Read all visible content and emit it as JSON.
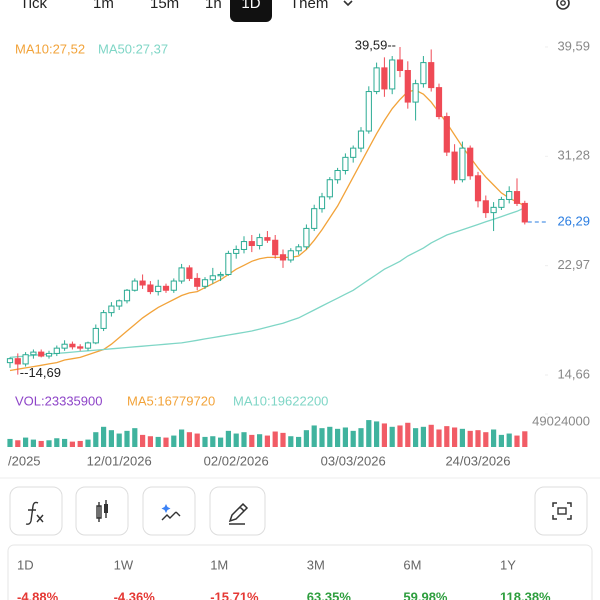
{
  "toolbar": {
    "tabs": [
      "Tick",
      "1m",
      "15m",
      "1h",
      "1D",
      "Thêm"
    ],
    "selected": "1D"
  },
  "chart_data": {
    "type": "candlestick",
    "categories": [
      null,
      null,
      "/2025",
      null,
      null,
      null,
      null,
      null,
      null,
      null,
      null,
      null,
      null,
      null,
      "12/01/2026",
      null,
      null,
      null,
      null,
      null,
      null,
      null,
      null,
      null,
      null,
      null,
      null,
      null,
      null,
      "02/02/2026",
      null,
      null,
      null,
      null,
      null,
      null,
      null,
      null,
      null,
      null,
      null,
      null,
      null,
      null,
      "03/03/2026",
      null,
      null,
      null,
      null,
      null,
      null,
      null,
      null,
      null,
      null,
      null,
      null,
      null,
      null,
      null,
      "24/03/2026",
      null,
      null,
      null,
      null,
      null,
      null
    ],
    "open": [
      15.6,
      15.9,
      15.5,
      16.2,
      16.4,
      16.1,
      16.3,
      16.7,
      17.0,
      16.8,
      16.7,
      17.1,
      18.2,
      19.4,
      19.9,
      20.3,
      21.1,
      21.8,
      21.5,
      21.0,
      21.4,
      21.1,
      21.8,
      22.8,
      22.0,
      21.4,
      21.9,
      22.2,
      22.3,
      23.9,
      24.2,
      24.8,
      24.5,
      25.1,
      24.9,
      23.8,
      23.4,
      24.1,
      24.4,
      25.8,
      27.3,
      28.2,
      29.5,
      30.2,
      31.2,
      31.9,
      33.2,
      36.2,
      38.0,
      36.4,
      38.6,
      37.8,
      35.4,
      36.8,
      38.4,
      36.5,
      34.3,
      31.6,
      29.5,
      31.9,
      29.8,
      27.9,
      27.0,
      27.4,
      28.0,
      28.6,
      27.7
    ],
    "high": [
      16.0,
      16.3,
      16.4,
      16.6,
      16.6,
      16.5,
      16.9,
      17.3,
      17.2,
      17.0,
      17.2,
      18.5,
      19.6,
      20.2,
      20.4,
      21.2,
      22.0,
      22.3,
      21.8,
      21.9,
      21.6,
      22.0,
      23.1,
      23.0,
      22.4,
      22.1,
      22.8,
      22.5,
      24.1,
      24.5,
      25.2,
      25.3,
      25.4,
      25.6,
      25.3,
      24.2,
      24.3,
      24.6,
      26.1,
      27.6,
      28.5,
      29.7,
      30.4,
      31.5,
      32.1,
      33.5,
      36.6,
      38.4,
      38.8,
      38.9,
      39.59,
      38.5,
      37.1,
      38.9,
      39.4,
      36.8,
      34.6,
      32.2,
      32.4,
      32.1,
      30.1,
      28.3,
      27.8,
      28.2,
      29.0,
      29.6,
      27.9
    ],
    "low": [
      15.2,
      14.69,
      15.3,
      15.9,
      16.0,
      15.9,
      16.1,
      16.5,
      16.6,
      16.5,
      16.5,
      17.0,
      18.0,
      19.1,
      19.6,
      20.1,
      21.0,
      21.2,
      20.8,
      20.7,
      20.9,
      20.9,
      21.6,
      21.8,
      21.1,
      21.2,
      21.6,
      21.8,
      22.2,
      23.5,
      23.9,
      24.0,
      24.2,
      24.7,
      23.5,
      22.8,
      23.2,
      23.8,
      24.2,
      25.6,
      27.0,
      28.0,
      29.2,
      29.9,
      30.8,
      31.6,
      33.0,
      36.0,
      35.8,
      36.0,
      37.3,
      34.9,
      34.0,
      36.5,
      36.2,
      34.1,
      31.3,
      29.2,
      29.3,
      29.5,
      27.4,
      26.6,
      25.6,
      27.2,
      27.7,
      27.5,
      26.1
    ],
    "close": [
      15.9,
      15.5,
      16.2,
      16.4,
      16.1,
      16.3,
      16.7,
      17.0,
      16.8,
      16.7,
      17.1,
      18.2,
      19.4,
      19.9,
      20.3,
      21.1,
      21.8,
      21.5,
      21.0,
      21.4,
      21.1,
      21.8,
      22.8,
      22.0,
      21.4,
      21.9,
      22.2,
      22.3,
      23.9,
      24.2,
      24.8,
      24.5,
      25.1,
      24.9,
      23.8,
      23.4,
      24.1,
      24.4,
      25.8,
      27.3,
      28.2,
      29.5,
      30.2,
      31.2,
      31.9,
      33.2,
      36.2,
      38.0,
      36.4,
      38.6,
      37.8,
      35.4,
      36.8,
      38.4,
      36.5,
      34.3,
      31.6,
      29.5,
      31.9,
      29.8,
      27.9,
      27.0,
      27.4,
      28.0,
      28.6,
      27.7,
      26.29
    ],
    "up_color": "#2bab93",
    "down_color": "#ef4a55",
    "series": [
      {
        "name": "MA10:27,52",
        "color": "#f2a33a",
        "values": [
          15.0,
          15.1,
          15.2,
          15.3,
          15.4,
          15.5,
          15.6,
          15.8,
          15.9,
          16.0,
          16.2,
          16.4,
          16.6,
          17.0,
          17.5,
          18.0,
          18.5,
          19.0,
          19.4,
          19.8,
          20.1,
          20.4,
          20.7,
          20.9,
          21.0,
          21.3,
          21.6,
          21.9,
          22.3,
          22.7,
          23.0,
          23.3,
          23.5,
          23.6,
          23.6,
          23.6,
          23.6,
          23.7,
          24.2,
          24.9,
          25.7,
          26.6,
          27.5,
          28.6,
          29.7,
          30.8,
          31.9,
          33.0,
          34.0,
          34.9,
          35.6,
          36.2,
          36.3,
          36.0,
          35.4,
          34.6,
          33.8,
          32.9,
          32.0,
          31.2,
          30.4,
          29.7,
          29.1,
          28.5,
          28.1,
          27.8,
          27.52
        ]
      },
      {
        "name": "MA50:27,37",
        "color": "#7fd6c6",
        "values": [
          16.0,
          16.05,
          16.1,
          16.15,
          16.2,
          16.25,
          16.3,
          16.35,
          16.4,
          16.45,
          16.5,
          16.55,
          16.6,
          16.65,
          16.7,
          16.75,
          16.8,
          16.85,
          16.9,
          16.95,
          17.0,
          17.05,
          17.1,
          17.2,
          17.3,
          17.4,
          17.5,
          17.6,
          17.7,
          17.8,
          17.9,
          18.0,
          18.15,
          18.3,
          18.45,
          18.6,
          18.8,
          19.0,
          19.3,
          19.6,
          19.9,
          20.2,
          20.5,
          20.8,
          21.1,
          21.5,
          21.9,
          22.3,
          22.7,
          23.0,
          23.3,
          23.7,
          24.0,
          24.3,
          24.7,
          25.0,
          25.3,
          25.5,
          25.7,
          25.9,
          26.1,
          26.3,
          26.5,
          26.7,
          26.9,
          27.1,
          27.37
        ]
      }
    ],
    "ylim": [
      13.52,
      40.27
    ],
    "yticks": [
      {
        "value": 39.59,
        "label": "39,59"
      },
      {
        "value": 31.28,
        "label": "31,28"
      },
      {
        "value": 22.97,
        "label": "22,97"
      },
      {
        "value": 14.66,
        "label": "14,66"
      }
    ],
    "high_label": {
      "value": 39.59,
      "label": "39,59--"
    },
    "low_label": {
      "value": 14.69,
      "label": "--14,69"
    },
    "last_price": {
      "value": 26.29,
      "label": "26,29",
      "color": "#2a7de1"
    },
    "volume": {
      "legend": [
        {
          "name": "VOL:23335900",
          "color": "#8e44c8"
        },
        {
          "name": "MA5:16779720",
          "color": "#f2a33a"
        },
        {
          "name": "MA10:19622200",
          "color": "#7fd6c6"
        }
      ],
      "values": [
        12000000,
        10000000,
        14000000,
        11000000,
        9000000,
        10000000,
        13000000,
        12000000,
        8000000,
        9000000,
        11000000,
        22000000,
        30000000,
        25000000,
        20000000,
        24000000,
        28000000,
        18000000,
        16000000,
        15000000,
        14000000,
        17000000,
        26000000,
        22000000,
        20000000,
        15000000,
        16000000,
        14000000,
        24000000,
        20000000,
        22000000,
        18000000,
        19000000,
        17000000,
        23000000,
        21000000,
        16000000,
        15000000,
        25000000,
        32000000,
        28000000,
        30000000,
        27000000,
        29000000,
        24000000,
        28000000,
        40000000,
        38000000,
        35000000,
        30000000,
        32000000,
        36000000,
        28000000,
        30000000,
        33000000,
        26000000,
        31000000,
        29000000,
        27000000,
        24000000,
        25000000,
        22000000,
        26000000,
        18000000,
        20000000,
        17000000,
        23335900
      ],
      "ylim": [
        0,
        52000000
      ],
      "yticks": [
        49024000
      ]
    }
  },
  "performance": {
    "periods": [
      "1D",
      "1W",
      "1M",
      "3M",
      "6M",
      "1Y"
    ],
    "changes": [
      "-4,88%",
      "-4,36%",
      "-15,71%",
      "63,35%",
      "59,98%",
      "118,38%"
    ]
  }
}
